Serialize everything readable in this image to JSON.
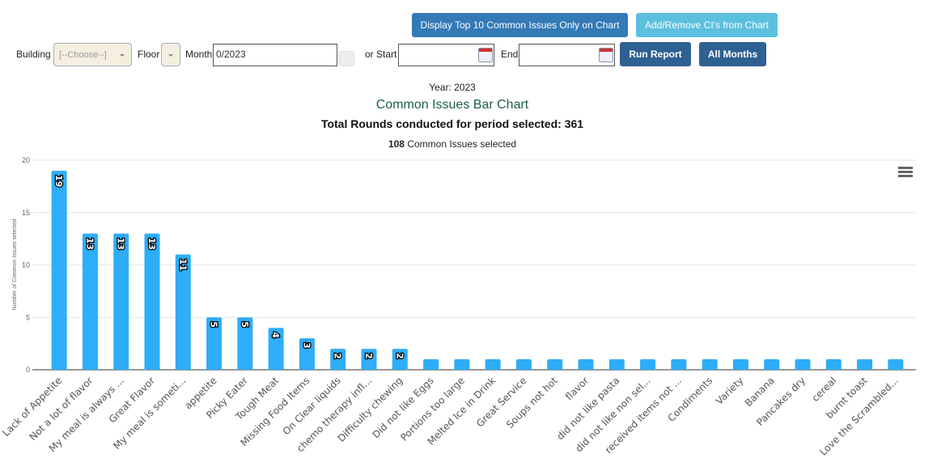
{
  "toolbar": {
    "top10_label": "Display Top 10 Common Issues Only on Chart",
    "addremove_label": "Add/Remove CI's from Chart",
    "building_label": "Building",
    "building_value": "[--Choose--]",
    "floor_label": "Floor",
    "month_label": "Month",
    "month_value": "0/2023",
    "start_label": "or Start",
    "end_label": "End",
    "run_label": "Run Report",
    "all_months_label": "All Months"
  },
  "header": {
    "year": "Year: 2023",
    "title": "Common Issues Bar Chart",
    "rounds": "Total Rounds conducted for period selected: 361",
    "selected_count": "108",
    "selected_text": " Common Issues selected"
  },
  "chart_data": {
    "type": "bar",
    "title": "Common Issues Bar Chart",
    "xlabel": "",
    "ylabel": "Number of Common Issues selected",
    "ylim": [
      0,
      20
    ],
    "yticks": [
      0,
      5,
      10,
      15,
      20
    ],
    "grid": true,
    "color": "#2eadf8",
    "categories": [
      "Lack of Appetite",
      "Not a lot of flavor",
      "My meal is always ...",
      "Great Flavor",
      "My meal is someti...",
      "appetite",
      "Picky Eater",
      "Tough Meat",
      "Missing Food Items",
      "On Clear liquids",
      "chemo therapy infl...",
      "Difficulty chewing",
      "Did not like Eggs",
      "Portions too large",
      "Melted Ice in Drink",
      "Great Service",
      "Soups not hot",
      "flavor",
      "did not like pasta",
      "did not like non sel...",
      "received items not ...",
      "Condiments",
      "Variety",
      "Banana",
      "Pancakes dry",
      "cereal",
      "burnt toast",
      "Love the Scrambled..."
    ],
    "values": [
      19,
      13,
      13,
      13,
      11,
      5,
      5,
      4,
      3,
      2,
      2,
      2,
      1,
      1,
      1,
      1,
      1,
      1,
      1,
      1,
      1,
      1,
      1,
      1,
      1,
      1,
      1,
      1
    ]
  }
}
